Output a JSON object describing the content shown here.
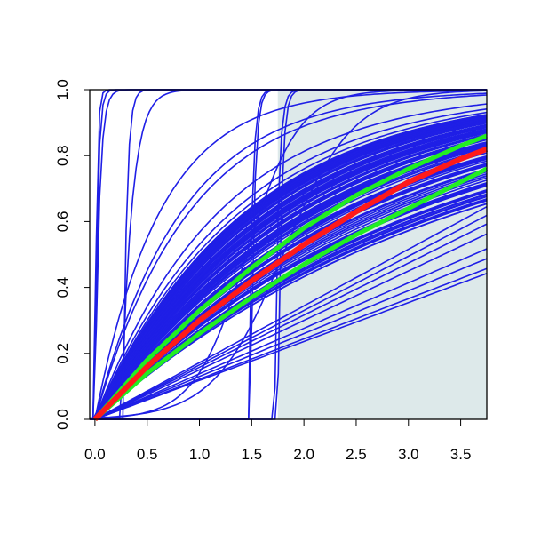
{
  "chart_data": {
    "type": "line",
    "title": "",
    "xlabel": "",
    "ylabel": "",
    "xlim": [
      -0.05,
      3.75
    ],
    "ylim": [
      0,
      1
    ],
    "x_ticks": [
      "0.0",
      "0.5",
      "1.0",
      "1.5",
      "2.0",
      "2.5",
      "3.0",
      "3.5"
    ],
    "y_ticks": [
      "0.0",
      "0.2",
      "0.4",
      "0.6",
      "0.8",
      "1.0"
    ],
    "shaded_region": {
      "x_from": 1.75,
      "x_to": 3.75,
      "color": "#dde9ea"
    },
    "colors": {
      "ensemble": "#1f1fe6",
      "center": "#ff1a1a",
      "bounds": "#22ee22",
      "axis": "#000000"
    },
    "ensemble_count": 140,
    "center_curve": {
      "name": "",
      "x": [
        0,
        0.5,
        1.0,
        1.5,
        2.0,
        2.5,
        3.0,
        3.5,
        3.75
      ],
      "y": [
        0,
        0.16,
        0.3,
        0.42,
        0.53,
        0.63,
        0.72,
        0.79,
        0.82
      ]
    },
    "bound_curves": [
      {
        "x": [
          0,
          0.5,
          1.0,
          1.5,
          2.0,
          2.5,
          3.0,
          3.5,
          3.75
        ],
        "y": [
          0,
          0.18,
          0.33,
          0.46,
          0.58,
          0.68,
          0.76,
          0.83,
          0.86
        ]
      },
      {
        "x": [
          0,
          0.5,
          1.0,
          1.5,
          2.0,
          2.5,
          3.0,
          3.5,
          3.75
        ],
        "y": [
          0,
          0.14,
          0.26,
          0.37,
          0.47,
          0.56,
          0.64,
          0.72,
          0.76
        ]
      }
    ]
  }
}
